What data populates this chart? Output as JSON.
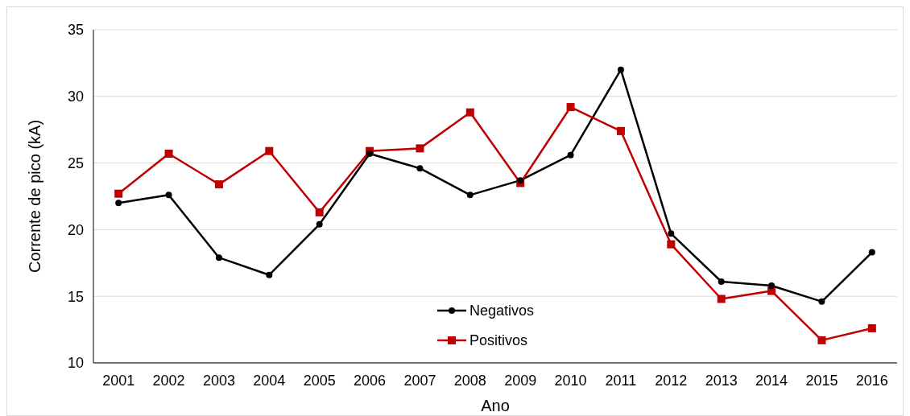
{
  "chart_data": {
    "type": "line",
    "xlabel": "Ano",
    "ylabel": "Corrente de pico (kA)",
    "categories": [
      "2001",
      "2002",
      "2003",
      "2004",
      "2005",
      "2006",
      "2007",
      "2008",
      "2009",
      "2010",
      "2011",
      "2012",
      "2013",
      "2014",
      "2015",
      "2016"
    ],
    "series": [
      {
        "name": "Negativos",
        "color": "#000000",
        "marker": "circle",
        "values": [
          22.0,
          22.6,
          17.9,
          16.6,
          20.4,
          25.7,
          24.6,
          22.6,
          23.7,
          25.6,
          32.0,
          19.7,
          16.1,
          15.8,
          14.6,
          18.3
        ]
      },
      {
        "name": "Positivos",
        "color": "#c00000",
        "marker": "square",
        "values": [
          22.7,
          25.7,
          23.4,
          25.9,
          21.3,
          25.9,
          26.1,
          28.8,
          23.5,
          29.2,
          27.4,
          18.9,
          14.8,
          15.4,
          11.7,
          12.6
        ]
      }
    ],
    "ylim": [
      10,
      35
    ],
    "yticks": [
      10,
      15,
      20,
      25,
      30,
      35
    ],
    "grid": "y",
    "legend": "bottom",
    "line_style": "solid"
  }
}
